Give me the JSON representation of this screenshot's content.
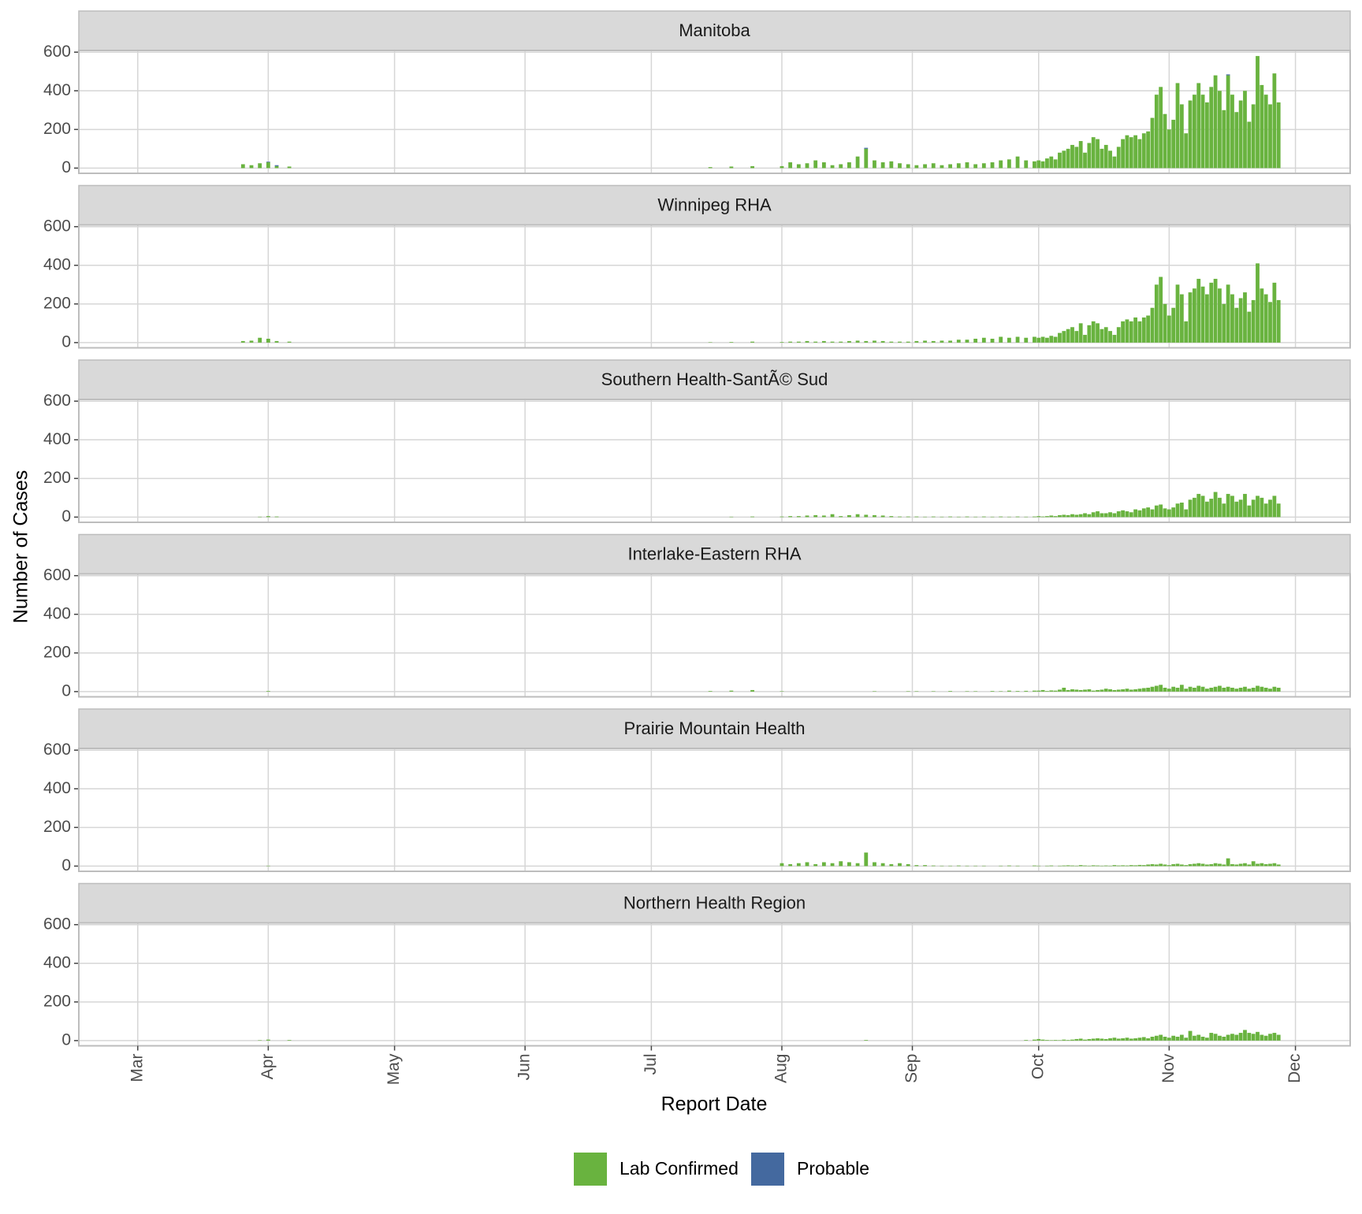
{
  "chart_data": {
    "type": "bar",
    "xlabel": "Report Date",
    "ylabel": "Number of Cases",
    "xlim": [
      "02-16",
      "12-14"
    ],
    "xticks": [
      {
        "value": "03-01",
        "label": "Mar"
      },
      {
        "value": "04-01",
        "label": "Apr"
      },
      {
        "value": "05-01",
        "label": "May"
      },
      {
        "value": "06-01",
        "label": "Jun"
      },
      {
        "value": "07-01",
        "label": "Jul"
      },
      {
        "value": "08-01",
        "label": "Aug"
      },
      {
        "value": "09-01",
        "label": "Sep"
      },
      {
        "value": "10-01",
        "label": "Oct"
      },
      {
        "value": "11-01",
        "label": "Nov"
      },
      {
        "value": "12-01",
        "label": "Dec"
      }
    ],
    "ylim": [
      -27,
      609
    ],
    "yticks": [
      0,
      200,
      400,
      600
    ],
    "grid": true,
    "stacked": true,
    "legend": "bottom",
    "x": [
      "03-26",
      "03-28",
      "03-30",
      "04-01",
      "04-03",
      "04-06",
      "07-15",
      "07-20",
      "07-25",
      "08-01",
      "08-03",
      "08-05",
      "08-07",
      "08-09",
      "08-11",
      "08-13",
      "08-15",
      "08-17",
      "08-19",
      "08-21",
      "08-23",
      "08-25",
      "08-27",
      "08-29",
      "08-31",
      "09-02",
      "09-04",
      "09-06",
      "09-08",
      "09-10",
      "09-12",
      "09-14",
      "09-16",
      "09-18",
      "09-20",
      "09-22",
      "09-24",
      "09-26",
      "09-28",
      "09-30",
      "10-01",
      "10-02",
      "10-03",
      "10-04",
      "10-05",
      "10-06",
      "10-07",
      "10-08",
      "10-09",
      "10-10",
      "10-11",
      "10-12",
      "10-13",
      "10-14",
      "10-15",
      "10-16",
      "10-17",
      "10-18",
      "10-19",
      "10-20",
      "10-21",
      "10-22",
      "10-23",
      "10-24",
      "10-25",
      "10-26",
      "10-27",
      "10-28",
      "10-29",
      "10-30",
      "10-31",
      "11-01",
      "11-02",
      "11-03",
      "11-04",
      "11-05",
      "11-06",
      "11-07",
      "11-08",
      "11-09",
      "11-10",
      "11-11",
      "11-12",
      "11-13",
      "11-14",
      "11-15",
      "11-16",
      "11-17",
      "11-18",
      "11-19",
      "11-20",
      "11-21",
      "11-22",
      "11-23",
      "11-24",
      "11-25",
      "11-26",
      "11-27"
    ],
    "panels": [
      {
        "title": "Manitoba",
        "series": [
          {
            "name": "Lab Confirmed",
            "color": "#69b33f",
            "values": [
              20,
              15,
              25,
              30,
              10,
              8,
              5,
              8,
              10,
              10,
              30,
              20,
              25,
              40,
              30,
              15,
              20,
              30,
              60,
              100,
              40,
              30,
              35,
              25,
              20,
              15,
              20,
              25,
              15,
              20,
              25,
              30,
              20,
              25,
              30,
              40,
              45,
              60,
              40,
              35,
              40,
              35,
              50,
              60,
              45,
              80,
              90,
              100,
              120,
              110,
              140,
              80,
              130,
              160,
              150,
              100,
              120,
              90,
              60,
              110,
              150,
              170,
              160,
              170,
              150,
              180,
              190,
              260,
              380,
              420,
              280,
              200,
              250,
              440,
              330,
              180,
              350,
              380,
              440,
              380,
              340,
              420,
              480,
              400,
              300,
              480,
              380,
              290,
              350,
              400,
              240,
              330,
              580,
              430,
              380,
              330,
              490,
              340
            ]
          },
          {
            "name": "Probable",
            "color": "#44699f",
            "values": [
              0,
              0,
              0,
              3,
              5,
              0,
              0,
              0,
              0,
              0,
              0,
              0,
              0,
              0,
              0,
              0,
              0,
              0,
              0,
              5,
              0,
              0,
              0,
              0,
              0,
              0,
              0,
              0,
              0,
              0,
              0,
              0,
              0,
              0,
              0,
              0,
              0,
              0,
              0,
              0,
              0,
              0,
              0,
              0,
              0,
              0,
              0,
              0,
              0,
              0,
              0,
              0,
              0,
              0,
              0,
              0,
              0,
              0,
              0,
              0,
              0,
              0,
              0,
              0,
              0,
              0,
              0,
              0,
              0,
              0,
              0,
              0,
              0,
              0,
              0,
              0,
              0,
              0,
              0,
              0,
              0,
              0,
              0,
              0,
              0,
              5,
              0,
              0,
              0,
              0,
              0,
              0,
              0,
              0,
              0,
              0,
              0,
              0
            ]
          }
        ]
      },
      {
        "title": "Winnipeg RHA",
        "series": [
          {
            "name": "Lab Confirmed",
            "color": "#69b33f",
            "values": [
              8,
              10,
              25,
              20,
              8,
              5,
              2,
              3,
              5,
              3,
              5,
              5,
              8,
              5,
              8,
              5,
              5,
              8,
              10,
              8,
              10,
              8,
              5,
              5,
              5,
              8,
              10,
              8,
              10,
              10,
              15,
              15,
              20,
              25,
              20,
              30,
              25,
              30,
              25,
              30,
              25,
              30,
              25,
              35,
              30,
              50,
              60,
              70,
              80,
              60,
              100,
              40,
              90,
              110,
              100,
              70,
              80,
              60,
              40,
              80,
              110,
              120,
              110,
              130,
              110,
              130,
              140,
              180,
              300,
              340,
              200,
              140,
              180,
              300,
              250,
              110,
              260,
              280,
              330,
              290,
              250,
              310,
              330,
              280,
              200,
              300,
              250,
              180,
              230,
              260,
              160,
              220,
              410,
              280,
              250,
              210,
              310,
              220
            ]
          }
        ]
      },
      {
        "title": "Southern Health-SantÃ© Sud",
        "series": [
          {
            "name": "Lab Confirmed",
            "color": "#69b33f",
            "values": [
              0,
              0,
              2,
              5,
              3,
              0,
              0,
              2,
              3,
              3,
              5,
              5,
              8,
              10,
              8,
              15,
              5,
              10,
              15,
              12,
              10,
              8,
              5,
              3,
              3,
              3,
              2,
              3,
              2,
              3,
              2,
              3,
              2,
              3,
              2,
              3,
              2,
              3,
              2,
              3,
              5,
              3,
              5,
              8,
              5,
              10,
              12,
              10,
              15,
              12,
              15,
              20,
              15,
              25,
              30,
              20,
              20,
              25,
              20,
              30,
              35,
              30,
              25,
              40,
              35,
              45,
              50,
              40,
              60,
              65,
              45,
              40,
              50,
              70,
              75,
              40,
              90,
              100,
              120,
              110,
              80,
              95,
              130,
              100,
              70,
              120,
              110,
              80,
              90,
              120,
              60,
              90,
              110,
              100,
              70,
              90,
              110,
              70
            ]
          }
        ]
      },
      {
        "title": "Interlake-Eastern RHA",
        "series": [
          {
            "name": "Lab Confirmed",
            "color": "#69b33f",
            "values": [
              0,
              0,
              0,
              3,
              0,
              0,
              3,
              5,
              8,
              2,
              0,
              0,
              0,
              0,
              0,
              0,
              0,
              0,
              0,
              0,
              2,
              0,
              0,
              0,
              2,
              2,
              0,
              2,
              0,
              3,
              0,
              2,
              2,
              0,
              3,
              2,
              5,
              3,
              4,
              5,
              5,
              8,
              3,
              6,
              5,
              10,
              20,
              8,
              12,
              10,
              8,
              10,
              12,
              5,
              8,
              10,
              15,
              12,
              8,
              10,
              12,
              15,
              10,
              12,
              15,
              18,
              20,
              25,
              30,
              35,
              20,
              15,
              25,
              20,
              35,
              15,
              25,
              20,
              30,
              25,
              15,
              20,
              25,
              30,
              20,
              25,
              20,
              15,
              20,
              25,
              15,
              20,
              30,
              25,
              20,
              15,
              25,
              20
            ]
          }
        ]
      },
      {
        "title": "Prairie Mountain Health",
        "series": [
          {
            "name": "Lab Confirmed",
            "color": "#69b33f",
            "values": [
              0,
              0,
              0,
              2,
              0,
              0,
              0,
              0,
              0,
              15,
              10,
              15,
              20,
              10,
              20,
              15,
              25,
              20,
              15,
              70,
              20,
              15,
              10,
              15,
              10,
              5,
              5,
              3,
              2,
              2,
              3,
              2,
              2,
              2,
              0,
              2,
              3,
              2,
              0,
              3,
              2,
              0,
              2,
              3,
              0,
              2,
              3,
              4,
              3,
              2,
              5,
              3,
              2,
              4,
              3,
              2,
              3,
              2,
              5,
              3,
              4,
              3,
              5,
              4,
              6,
              5,
              8,
              10,
              8,
              12,
              8,
              5,
              10,
              12,
              8,
              5,
              10,
              12,
              15,
              12,
              8,
              10,
              15,
              12,
              8,
              40,
              10,
              8,
              12,
              15,
              8,
              25,
              12,
              15,
              10,
              12,
              15,
              8
            ]
          }
        ]
      },
      {
        "title": "Northern Health Region",
        "series": [
          {
            "name": "Lab Confirmed",
            "color": "#69b33f",
            "values": [
              0,
              0,
              2,
              5,
              0,
              3,
              0,
              0,
              0,
              0,
              0,
              0,
              0,
              0,
              0,
              0,
              0,
              0,
              0,
              3,
              0,
              0,
              0,
              0,
              0,
              0,
              0,
              0,
              0,
              0,
              0,
              0,
              0,
              0,
              0,
              0,
              0,
              0,
              3,
              5,
              8,
              5,
              3,
              2,
              3,
              2,
              5,
              3,
              5,
              8,
              10,
              5,
              8,
              10,
              12,
              10,
              8,
              12,
              15,
              10,
              12,
              15,
              10,
              12,
              15,
              18,
              12,
              20,
              25,
              30,
              20,
              15,
              25,
              20,
              30,
              15,
              50,
              25,
              30,
              20,
              15,
              40,
              35,
              25,
              20,
              30,
              35,
              30,
              40,
              55,
              40,
              35,
              45,
              30,
              25,
              35,
              40,
              30
            ]
          }
        ]
      }
    ]
  }
}
